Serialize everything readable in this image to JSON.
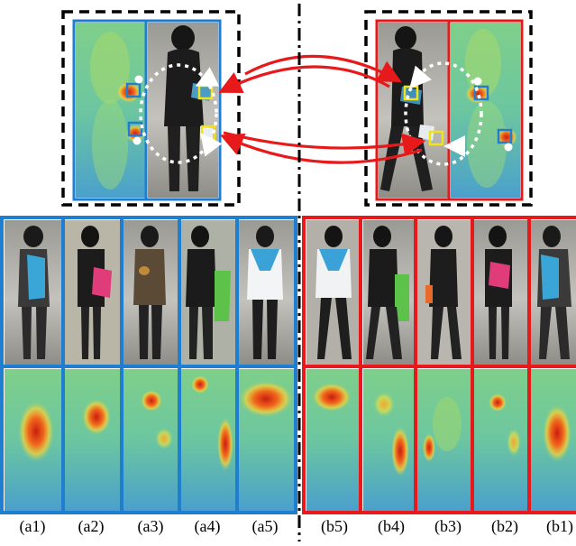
{
  "figure": {
    "frame_colors": {
      "group_a": "#1f7ed0",
      "group_b": "#e8191a",
      "match_arrow": "#e8191a",
      "highlight_box": "#f2e21a"
    },
    "captions_a": [
      "(a1)",
      "(a2)",
      "(a3)",
      "(a4)",
      "(a5)"
    ],
    "captions_b": [
      "(b5)",
      "(b4)",
      "(b3)",
      "(b2)",
      "(b1)"
    ]
  }
}
